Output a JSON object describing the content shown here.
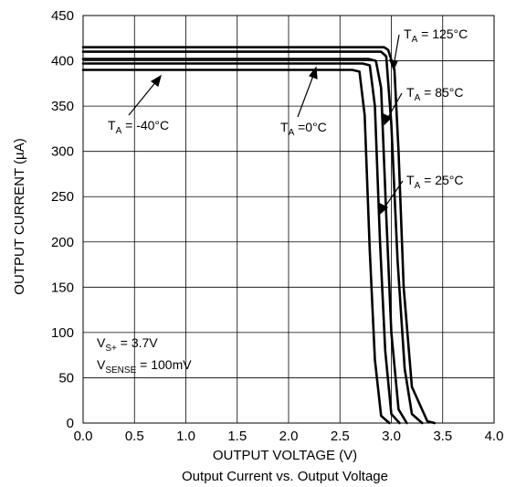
{
  "chart_data": {
    "type": "line",
    "title": "",
    "caption": "Output Current vs. Output Voltage",
    "xlabel": "OUTPUT VOLTAGE (V)",
    "ylabel": "OUTPUT CURRENT (µA)",
    "xlim": [
      0.0,
      4.0
    ],
    "ylim": [
      0,
      450
    ],
    "xticks": [
      "0.0",
      "0.5",
      "1.0",
      "1.5",
      "2.0",
      "2.5",
      "3.0",
      "3.5",
      "4.0"
    ],
    "yticks": [
      "0",
      "50",
      "100",
      "150",
      "200",
      "250",
      "300",
      "350",
      "400",
      "450"
    ],
    "grid": true,
    "line_color": "#000000",
    "series": [
      {
        "name": "TA = 125°C",
        "x": [
          0.0,
          2.85,
          2.93,
          2.97,
          3.03,
          3.07,
          3.12,
          3.2,
          3.35,
          3.42
        ],
        "y": [
          415,
          415,
          415,
          412,
          390,
          300,
          150,
          40,
          2,
          0
        ]
      },
      {
        "name": "TA = 85°C",
        "x": [
          0.0,
          2.85,
          2.9,
          2.95,
          3.0,
          3.06,
          3.13,
          3.2,
          3.3
        ],
        "y": [
          410,
          410,
          410,
          405,
          330,
          180,
          60,
          10,
          0
        ]
      },
      {
        "name": "TA = 25°C",
        "x": [
          0.0,
          2.78,
          2.85,
          2.9,
          2.95,
          3.0,
          3.07,
          3.15
        ],
        "y": [
          402,
          402,
          400,
          370,
          230,
          100,
          15,
          0
        ]
      },
      {
        "name": "TA = 0°C",
        "x": [
          0.0,
          2.72,
          2.79,
          2.84,
          2.89,
          2.94,
          3.0,
          3.08
        ],
        "y": [
          397,
          397,
          395,
          350,
          200,
          80,
          10,
          0
        ]
      },
      {
        "name": "TA = -40°C",
        "x": [
          0.0,
          2.62,
          2.69,
          2.74,
          2.79,
          2.84,
          2.9,
          2.98
        ],
        "y": [
          390,
          390,
          388,
          340,
          190,
          70,
          8,
          0
        ]
      }
    ],
    "annotations": {
      "t125": {
        "pre": "T",
        "sub": "A",
        "post": " = 125°C"
      },
      "t85": {
        "pre": "T",
        "sub": "A",
        "post": " = 85°C"
      },
      "t25": {
        "pre": "T",
        "sub": "A",
        "post": " = 25°C"
      },
      "t0": {
        "pre": "T",
        "sub": "A",
        "post": " =0°C"
      },
      "tm40": {
        "pre": "T",
        "sub": "A",
        "post": " = -40°C"
      },
      "vs": {
        "pre": "V",
        "sub": "S+",
        "post": " = 3.7V"
      },
      "vsense": {
        "pre": "V",
        "sub": "SENSE",
        "post": " = 100mV"
      }
    }
  }
}
